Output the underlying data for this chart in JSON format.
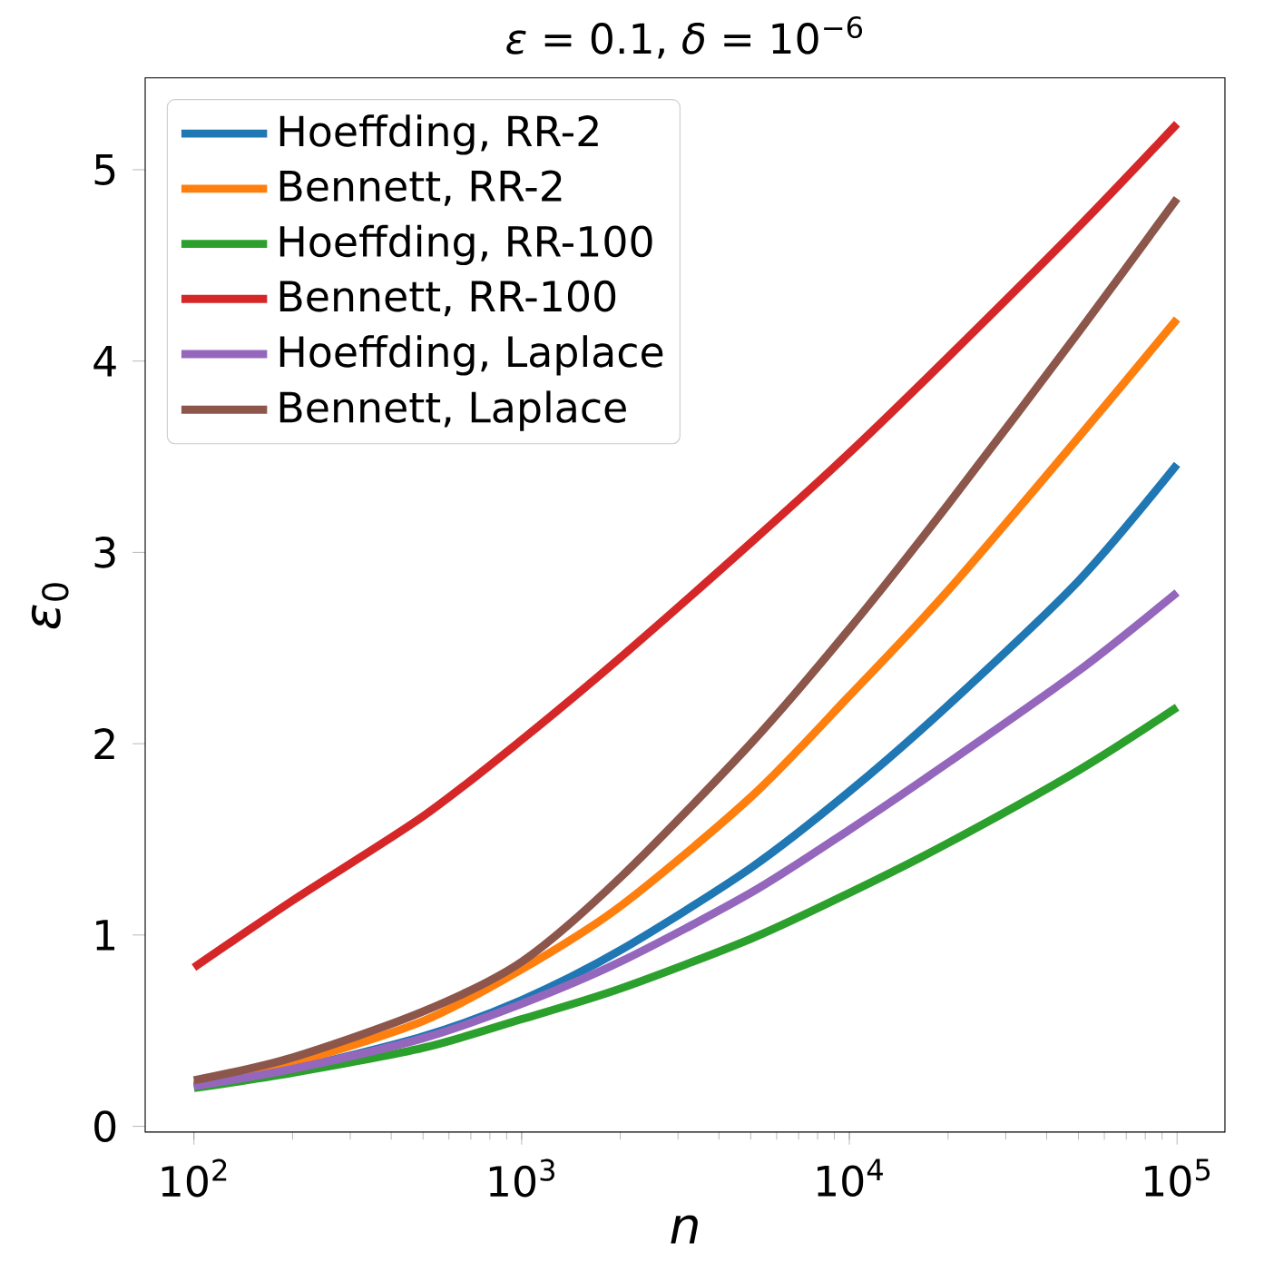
{
  "chart_data": {
    "type": "line",
    "title": "*ε* = 0.1, *δ* = 10$^{−6}$",
    "xlabel": "*n*",
    "ylabel": "*ε*$_{0}$",
    "log": "x",
    "xlim": [
      71,
      140000
    ],
    "ylim": [
      -0.03,
      5.48
    ],
    "xticks": [
      {
        "value": 100,
        "label": "10$^{2}$"
      },
      {
        "value": 1000,
        "label": "10$^{3}$"
      },
      {
        "value": 10000,
        "label": "10$^{4}$"
      },
      {
        "value": 100000,
        "label": "10$^{5}$"
      }
    ],
    "yticks": [
      0,
      1,
      2,
      3,
      4,
      5
    ],
    "x": [
      100,
      200,
      500,
      1000,
      2000,
      5000,
      10000,
      20000,
      50000,
      100000
    ],
    "legend": "top left",
    "grid": false,
    "marker": "none",
    "line_style": "solid",
    "series": [
      {
        "name": "Hoeffding, RR-2",
        "color": "#1f77b4",
        "values": [
          0.21,
          0.3,
          0.47,
          0.66,
          0.92,
          1.35,
          1.75,
          2.2,
          2.85,
          3.46
        ]
      },
      {
        "name": "Bennett, RR-2",
        "color": "#ff7f0e",
        "values": [
          0.22,
          0.33,
          0.55,
          0.82,
          1.15,
          1.72,
          2.25,
          2.8,
          3.6,
          4.22
        ]
      },
      {
        "name": "Hoeffding, RR-100",
        "color": "#2ca02c",
        "values": [
          0.2,
          0.28,
          0.41,
          0.56,
          0.72,
          0.98,
          1.22,
          1.48,
          1.86,
          2.19
        ]
      },
      {
        "name": "Bennett, RR-100",
        "color": "#d62728",
        "values": [
          0.83,
          1.18,
          1.62,
          2.02,
          2.45,
          3.05,
          3.52,
          4.02,
          4.7,
          5.24
        ]
      },
      {
        "name": "Hoeffding, Laplace",
        "color": "#9467bd",
        "values": [
          0.21,
          0.3,
          0.46,
          0.64,
          0.86,
          1.22,
          1.55,
          1.9,
          2.38,
          2.79
        ]
      },
      {
        "name": "Bennett, Laplace",
        "color": "#8c564b",
        "values": [
          0.24,
          0.36,
          0.6,
          0.86,
          1.3,
          2.0,
          2.6,
          3.25,
          4.15,
          4.85
        ]
      }
    ]
  }
}
